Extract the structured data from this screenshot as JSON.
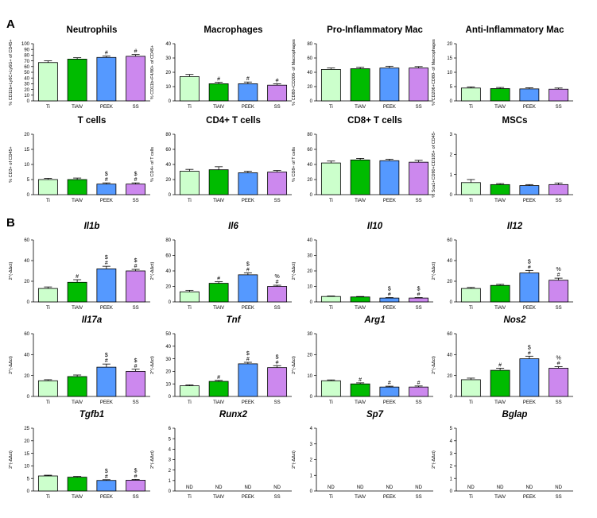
{
  "panels": {
    "a": "A",
    "b": "B"
  },
  "categories": [
    "Ti",
    "TiAlV",
    "PEEK",
    "SS"
  ],
  "colors": [
    "#ccffcc",
    "#00bb00",
    "#5599ff",
    "#cc88ee"
  ],
  "chart_data": [
    {
      "type": "bar",
      "title": "Neutrophils",
      "title_italic": false,
      "ylabel": "% CD11b+Ly6C+Ly6G+ of CD45+",
      "ylim": [
        0,
        100
      ],
      "yticks": [
        0,
        10,
        20,
        30,
        40,
        50,
        60,
        70,
        80,
        90,
        100
      ],
      "values": [
        67,
        73,
        76,
        78
      ],
      "errors": [
        3,
        2.5,
        2.5,
        3
      ],
      "annotations": [
        [],
        [],
        [
          "#"
        ],
        [
          "#"
        ]
      ]
    },
    {
      "type": "bar",
      "title": "Macrophages",
      "title_italic": false,
      "ylabel": "% CD11b+F4/80+ of CD45+",
      "ylim": [
        0,
        40
      ],
      "yticks": [
        0,
        10,
        20,
        30,
        40
      ],
      "values": [
        17,
        12,
        12,
        11
      ],
      "errors": [
        1.5,
        1,
        1.2,
        1
      ],
      "annotations": [
        [],
        [
          "#"
        ],
        [
          "#"
        ],
        [
          "#"
        ]
      ]
    },
    {
      "type": "bar",
      "title": "Pro-Inflammatory Mac",
      "title_italic": false,
      "ylabel": "% CD80+CD206- of Macrophages",
      "ylim": [
        0,
        80
      ],
      "yticks": [
        0,
        20,
        40,
        60,
        80
      ],
      "values": [
        44,
        45,
        46,
        46
      ],
      "errors": [
        2,
        2,
        2.5,
        2
      ],
      "annotations": [
        [],
        [],
        [],
        []
      ]
    },
    {
      "type": "bar",
      "title": "Anti-Inflammatory Mac",
      "title_italic": false,
      "ylabel": "% CD206+CD80- of Macrophages",
      "ylim": [
        0,
        20
      ],
      "yticks": [
        0,
        5,
        10,
        15,
        20
      ],
      "values": [
        4.5,
        4.3,
        4.2,
        4.1
      ],
      "errors": [
        0.4,
        0.4,
        0.4,
        0.4
      ],
      "annotations": [
        [],
        [],
        [],
        []
      ]
    },
    {
      "type": "bar",
      "title": "T cells",
      "title_italic": false,
      "ylabel": "% CD3+ of CD45+",
      "ylim": [
        0,
        20
      ],
      "yticks": [
        0,
        5,
        10,
        15,
        20
      ],
      "values": [
        5,
        5,
        3.5,
        3.5
      ],
      "errors": [
        0.4,
        0.5,
        0.4,
        0.4
      ],
      "annotations": [
        [],
        [],
        [
          "#",
          "$"
        ],
        [
          "#",
          "$"
        ]
      ]
    },
    {
      "type": "bar",
      "title": "CD4+ T cells",
      "title_italic": false,
      "ylabel": "% CD4+ of T cells",
      "ylim": [
        0,
        80
      ],
      "yticks": [
        0,
        20,
        40,
        60,
        80
      ],
      "values": [
        31,
        33,
        29,
        30
      ],
      "errors": [
        2.5,
        4,
        2,
        2
      ],
      "annotations": [
        [],
        [],
        [],
        []
      ]
    },
    {
      "type": "bar",
      "title": "CD8+ T cells",
      "title_italic": false,
      "ylabel": "% CD8+ of T cells",
      "ylim": [
        0,
        80
      ],
      "yticks": [
        0,
        20,
        40,
        60,
        80
      ],
      "values": [
        42,
        46,
        45,
        43
      ],
      "errors": [
        2.5,
        2,
        2,
        2.5
      ],
      "annotations": [
        [],
        [],
        [],
        []
      ]
    },
    {
      "type": "bar",
      "title": "MSCs",
      "title_italic": false,
      "ylabel": "% Sca1+CD90+CD105+ of CD45-",
      "ylim": [
        0,
        3
      ],
      "yticks": [
        0,
        1,
        2,
        3
      ],
      "values": [
        0.6,
        0.5,
        0.45,
        0.5
      ],
      "errors": [
        0.15,
        0.05,
        0.05,
        0.08
      ],
      "annotations": [
        [],
        [],
        [],
        []
      ]
    },
    {
      "type": "bar",
      "title": "Il1b",
      "title_italic": true,
      "ylabel": "2^(-ΔΔct)",
      "ylim": [
        0,
        60
      ],
      "yticks": [
        0,
        20,
        40,
        60
      ],
      "values": [
        13,
        19,
        32,
        30
      ],
      "errors": [
        1.5,
        2.5,
        2.5,
        1.5
      ],
      "annotations": [
        [],
        [
          "#"
        ],
        [
          "#",
          "$"
        ],
        [
          "#",
          "$"
        ]
      ]
    },
    {
      "type": "bar",
      "title": "Il6",
      "title_italic": true,
      "ylabel": "2^(-ΔΔct)",
      "ylim": [
        0,
        80
      ],
      "yticks": [
        0,
        20,
        40,
        60,
        80
      ],
      "values": [
        13,
        24,
        35,
        20
      ],
      "errors": [
        2,
        2,
        2.5,
        1.5
      ],
      "annotations": [
        [],
        [
          "#"
        ],
        [
          "#",
          "$"
        ],
        [
          "#",
          "%"
        ]
      ]
    },
    {
      "type": "bar",
      "title": "Il10",
      "title_italic": true,
      "ylabel": "2^(-ΔΔct)",
      "ylim": [
        0,
        40
      ],
      "yticks": [
        0,
        10,
        20,
        30,
        40
      ],
      "values": [
        3.5,
        3.2,
        2.5,
        2.5
      ],
      "errors": [
        0.3,
        0.3,
        0.3,
        0.3
      ],
      "annotations": [
        [],
        [],
        [
          "#",
          "$"
        ],
        [
          "#",
          "$"
        ]
      ]
    },
    {
      "type": "bar",
      "title": "Il12",
      "title_italic": true,
      "ylabel": "2^(-ΔΔct)",
      "ylim": [
        0,
        60
      ],
      "yticks": [
        0,
        20,
        40,
        60
      ],
      "values": [
        13,
        16,
        28,
        21
      ],
      "errors": [
        1,
        1,
        2.5,
        2
      ],
      "annotations": [
        [],
        [],
        [
          "#",
          "$"
        ],
        [
          "#",
          "%"
        ]
      ]
    },
    {
      "type": "bar",
      "title": "Il17a",
      "title_italic": true,
      "ylabel": "2^(-ΔΔct)",
      "ylim": [
        0,
        60
      ],
      "yticks": [
        0,
        20,
        40,
        60
      ],
      "values": [
        15,
        19,
        28,
        24
      ],
      "errors": [
        1,
        1.5,
        3,
        2
      ],
      "annotations": [
        [],
        [],
        [
          "#",
          "$"
        ],
        [
          "#",
          "$"
        ]
      ]
    },
    {
      "type": "bar",
      "title": "Tnf",
      "title_italic": true,
      "ylabel": "2^(-ΔΔct)",
      "ylim": [
        0,
        50
      ],
      "yticks": [
        0,
        10,
        20,
        30,
        40,
        50
      ],
      "values": [
        8.5,
        12,
        26,
        23
      ],
      "errors": [
        0.7,
        0.8,
        1.2,
        1.5
      ],
      "annotations": [
        [],
        [
          "#"
        ],
        [
          "#",
          "$"
        ],
        [
          "#",
          "$"
        ]
      ]
    },
    {
      "type": "bar",
      "title": "Arg1",
      "title_italic": true,
      "ylabel": "2^(-ΔΔct)",
      "ylim": [
        0,
        30
      ],
      "yticks": [
        0,
        10,
        20,
        30
      ],
      "values": [
        7.5,
        6,
        4.5,
        4.5
      ],
      "errors": [
        0.4,
        0.5,
        0.4,
        0.5
      ],
      "annotations": [
        [],
        [
          "#"
        ],
        [
          "#"
        ],
        [
          "#"
        ]
      ]
    },
    {
      "type": "bar",
      "title": "Nos2",
      "title_italic": true,
      "ylabel": "2^(-ΔΔct)",
      "ylim": [
        0,
        60
      ],
      "yticks": [
        0,
        20,
        40,
        60
      ],
      "values": [
        16,
        25,
        36,
        27
      ],
      "errors": [
        1.5,
        2,
        2.5,
        1.5
      ],
      "annotations": [
        [],
        [
          "#"
        ],
        [
          "#",
          "$"
        ],
        [
          "#",
          "%"
        ]
      ]
    },
    {
      "type": "bar",
      "title": "Tgfb1",
      "title_italic": true,
      "ylabel": "2^(-ΔΔct)",
      "ylim": [
        0,
        25
      ],
      "yticks": [
        0,
        5,
        10,
        15,
        20,
        25
      ],
      "values": [
        6,
        5.5,
        4.2,
        4.3
      ],
      "errors": [
        0.3,
        0.3,
        0.3,
        0.3
      ],
      "annotations": [
        [],
        [],
        [
          "#",
          "$"
        ],
        [
          "#",
          "$"
        ]
      ]
    },
    {
      "type": "bar",
      "title": "Runx2",
      "title_italic": true,
      "ylabel": "2^(-ΔΔct)",
      "ylim": [
        0,
        6
      ],
      "yticks": [
        0,
        1,
        2,
        3,
        4,
        5,
        6
      ],
      "values": [
        null,
        null,
        null,
        null
      ],
      "errors": [
        0,
        0,
        0,
        0
      ],
      "nd_label": "ND",
      "annotations": [
        [],
        [],
        [],
        []
      ]
    },
    {
      "type": "bar",
      "title": "Sp7",
      "title_italic": true,
      "ylabel": "2^(-ΔΔct)",
      "ylim": [
        0,
        4
      ],
      "yticks": [
        0,
        1,
        2,
        3,
        4
      ],
      "values": [
        null,
        null,
        null,
        null
      ],
      "errors": [
        0,
        0,
        0,
        0
      ],
      "nd_label": "ND",
      "annotations": [
        [],
        [],
        [],
        []
      ]
    },
    {
      "type": "bar",
      "title": "Bglap",
      "title_italic": true,
      "ylabel": "2^(-ΔΔct)",
      "ylim": [
        0,
        5
      ],
      "yticks": [
        0,
        1,
        2,
        3,
        4,
        5
      ],
      "values": [
        null,
        null,
        null,
        null
      ],
      "errors": [
        0,
        0,
        0,
        0
      ],
      "nd_label": "ND",
      "annotations": [
        [],
        [],
        [],
        []
      ]
    }
  ]
}
